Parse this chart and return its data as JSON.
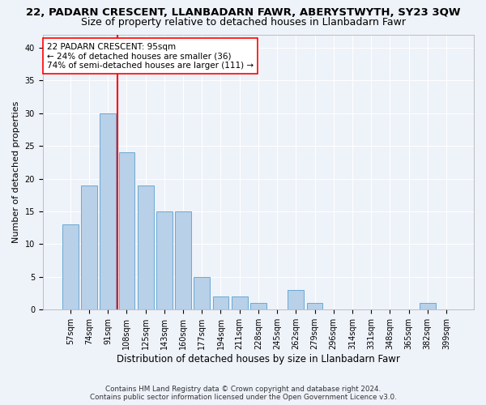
{
  "title": "22, PADARN CRESCENT, LLANBADARN FAWR, ABERYSTWYTH, SY23 3QW",
  "subtitle": "Size of property relative to detached houses in Llanbadarn Fawr",
  "xlabel": "Distribution of detached houses by size in Llanbadarn Fawr",
  "ylabel": "Number of detached properties",
  "categories": [
    "57sqm",
    "74sqm",
    "91sqm",
    "108sqm",
    "125sqm",
    "143sqm",
    "160sqm",
    "177sqm",
    "194sqm",
    "211sqm",
    "228sqm",
    "245sqm",
    "262sqm",
    "279sqm",
    "296sqm",
    "314sqm",
    "331sqm",
    "348sqm",
    "365sqm",
    "382sqm",
    "399sqm"
  ],
  "values": [
    13,
    19,
    30,
    24,
    19,
    15,
    15,
    5,
    2,
    2,
    1,
    0,
    3,
    1,
    0,
    0,
    0,
    0,
    0,
    1,
    0
  ],
  "bar_color": "#b8d0e8",
  "bar_edge_color": "#6aaad4",
  "red_line_index": 2.5,
  "annotation_text_line1": "22 PADARN CRESCENT: 95sqm",
  "annotation_text_line2": "← 24% of detached houses are smaller (36)",
  "annotation_text_line3": "74% of semi-detached houses are larger (111) →",
  "ylim": [
    0,
    42
  ],
  "yticks": [
    0,
    5,
    10,
    15,
    20,
    25,
    30,
    35,
    40
  ],
  "background_color": "#eef2f9",
  "grid_color": "#ffffff",
  "title_fontsize": 9.5,
  "subtitle_fontsize": 9,
  "tick_fontsize": 7,
  "ylabel_fontsize": 8,
  "xlabel_fontsize": 8.5,
  "footer_line1": "Contains HM Land Registry data © Crown copyright and database right 2024.",
  "footer_line2": "Contains public sector information licensed under the Open Government Licence v3.0."
}
